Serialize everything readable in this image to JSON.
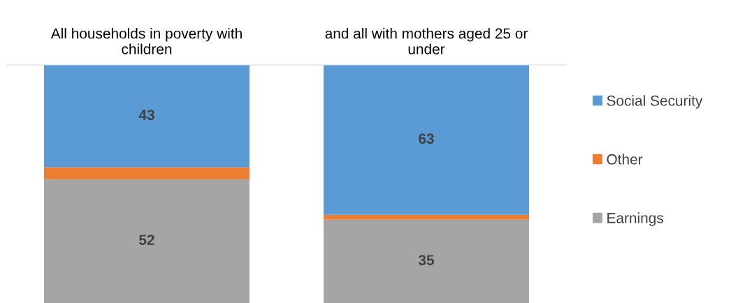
{
  "chart_data": {
    "type": "bar",
    "stacked": true,
    "categories": [
      "All households in poverty with\nchildren",
      "and all with mothers aged 25 or\nunder"
    ],
    "series": [
      {
        "name": "Earnings",
        "color": "#a5a5a5",
        "values": [
          52,
          35
        ],
        "value_labels": [
          "52",
          "35"
        ]
      },
      {
        "name": "Other",
        "color": "#ed7d31",
        "values": [
          5,
          2
        ],
        "value_labels": [
          null,
          null
        ]
      },
      {
        "name": "Social Security",
        "color": "#5b9bd5",
        "values": [
          43,
          63
        ],
        "value_labels": [
          "43",
          "63"
        ]
      }
    ],
    "legend": "right",
    "grid": false
  }
}
